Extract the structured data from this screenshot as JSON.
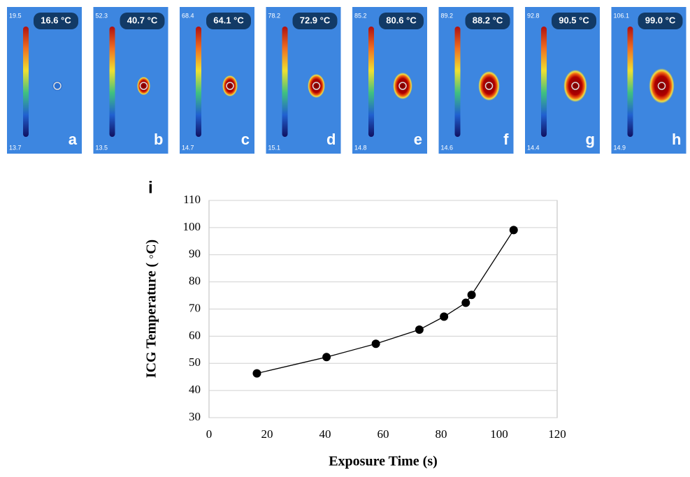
{
  "panels": [
    {
      "top": "19.5",
      "bottom": "13.7",
      "reading": "16.6 °C",
      "letter": "a"
    },
    {
      "top": "52.3",
      "bottom": "13.5",
      "reading": "40.7 °C",
      "letter": "b"
    },
    {
      "top": "68.4",
      "bottom": "14.7",
      "reading": "64.1 °C",
      "letter": "c"
    },
    {
      "top": "78.2",
      "bottom": "15.1",
      "reading": "72.9 °C",
      "letter": "d"
    },
    {
      "top": "85.2",
      "bottom": "14.8",
      "reading": "80.6 °C",
      "letter": "e"
    },
    {
      "top": "89.2",
      "bottom": "14.6",
      "reading": "88.2 °C",
      "letter": "f"
    },
    {
      "top": "92.8",
      "bottom": "14.4",
      "reading": "90.5 °C",
      "letter": "g"
    },
    {
      "top": "106.1",
      "bottom": "14.9",
      "reading": "99.0 °C",
      "letter": "h"
    }
  ],
  "chart_data": {
    "type": "line",
    "label": "i",
    "x_label": "Exposure Time (s)",
    "y_label": "ICG Temperature ( ◦C)",
    "series": [
      {
        "color": "#000000",
        "x": [
          16.5,
          40.5,
          57.5,
          72.5,
          81,
          88.5,
          90.5,
          105
        ],
        "values": [
          46.3,
          52.3,
          57.2,
          62.4,
          67.2,
          72.3,
          75.2,
          99.1
        ]
      }
    ],
    "xlim": [
      0,
      120
    ],
    "xticks": [
      0,
      20,
      40,
      60,
      80,
      100,
      120
    ],
    "ylim": [
      30,
      110
    ],
    "yticks": [
      30,
      40,
      50,
      60,
      70,
      80,
      90,
      100,
      110
    ],
    "grid": true
  }
}
